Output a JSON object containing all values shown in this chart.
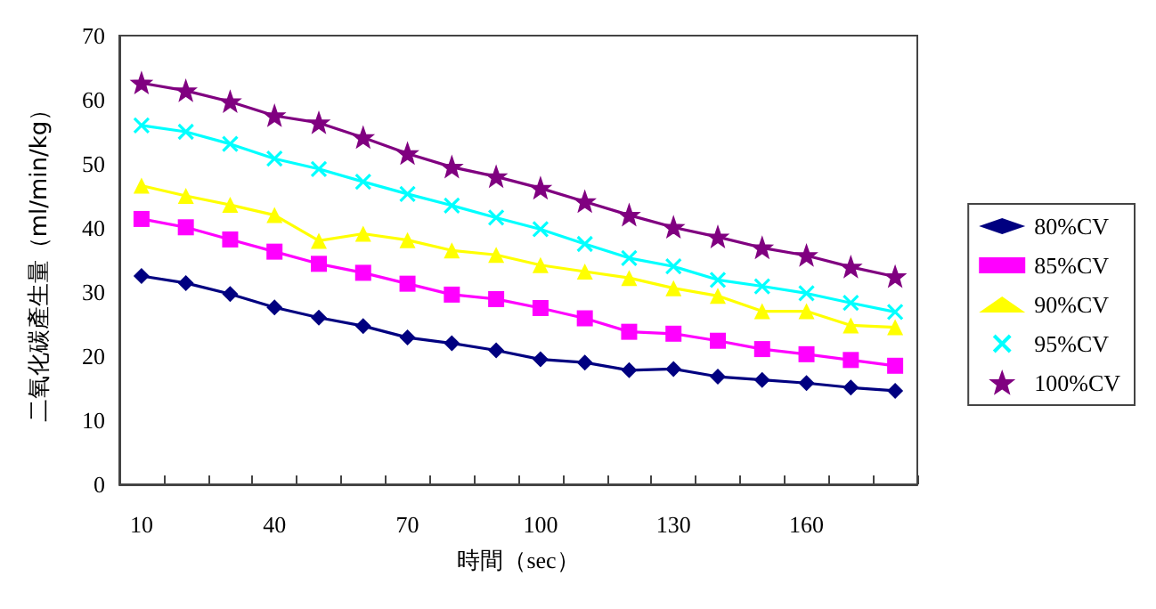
{
  "chart_data": {
    "type": "line",
    "xlabel": "時間（sec）",
    "ylabel": "二氧化碳產生量（ml/min/kg）",
    "categories": [
      "10",
      null,
      null,
      "40",
      null,
      null,
      "70",
      null,
      null,
      "100",
      null,
      null,
      "130",
      null,
      null,
      "160",
      null,
      null
    ],
    "ylim": [
      0,
      70
    ],
    "yticks": [
      0,
      10,
      20,
      30,
      40,
      50,
      60,
      70
    ],
    "grid": false,
    "legend": "right",
    "series": [
      {
        "name": "80%CV",
        "color": "#000080",
        "marker": "diamond",
        "values": [
          32.5,
          31.4,
          29.7,
          27.6,
          26,
          24.7,
          22.9,
          22,
          20.9,
          19.5,
          19,
          17.8,
          18,
          16.8,
          16.3,
          15.8,
          15.1,
          14.6
        ]
      },
      {
        "name": "85%CV",
        "color": "#ff00ff",
        "marker": "square",
        "values": [
          41.4,
          40.1,
          38.2,
          36.3,
          34.4,
          33,
          31.3,
          29.6,
          28.9,
          27.5,
          25.9,
          23.8,
          23.5,
          22.4,
          21.1,
          20.3,
          19.4,
          18.5
        ]
      },
      {
        "name": "90%CV",
        "color": "#ffff00",
        "marker": "triangle",
        "values": [
          46.6,
          45,
          43.6,
          42,
          38,
          39.1,
          38.1,
          36.5,
          35.8,
          34.2,
          33.2,
          32.2,
          30.6,
          29.4,
          27,
          27,
          24.8,
          24.5
        ]
      },
      {
        "name": "95%CV",
        "color": "#00ffff",
        "marker": "cross",
        "values": [
          56,
          55,
          53.1,
          50.8,
          49.2,
          47.2,
          45.3,
          43.5,
          41.6,
          39.8,
          37.5,
          35.3,
          34,
          31.9,
          30.9,
          29.8,
          28.3,
          26.9
        ]
      },
      {
        "name": "100%CV",
        "color": "#800080",
        "marker": "star",
        "values": [
          62.6,
          61.4,
          59.7,
          57.5,
          56.4,
          54.1,
          51.6,
          49.5,
          48,
          46.2,
          44.1,
          42,
          40.1,
          38.6,
          36.9,
          35.7,
          33.9,
          32.4
        ]
      }
    ]
  }
}
